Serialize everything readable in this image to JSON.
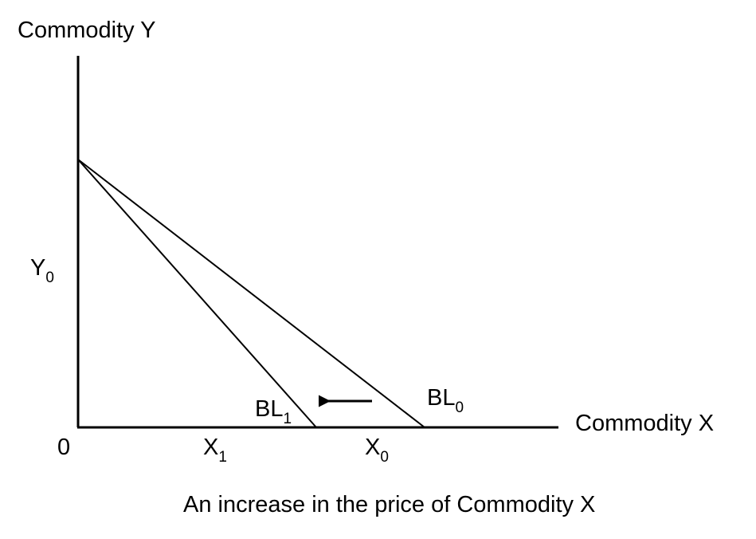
{
  "axes": {
    "y_label": "Commodity Y",
    "x_label": "Commodity X",
    "origin": "0"
  },
  "intercepts": {
    "y0": {
      "main": "Y",
      "sub": "0"
    },
    "x1": {
      "main": "X",
      "sub": "1"
    },
    "x0": {
      "main": "X",
      "sub": "0"
    }
  },
  "budget_lines": {
    "bl1": {
      "main": "BL",
      "sub": "1"
    },
    "bl0": {
      "main": "BL",
      "sub": "0"
    }
  },
  "caption": "An increase in the price of Commodity X"
}
